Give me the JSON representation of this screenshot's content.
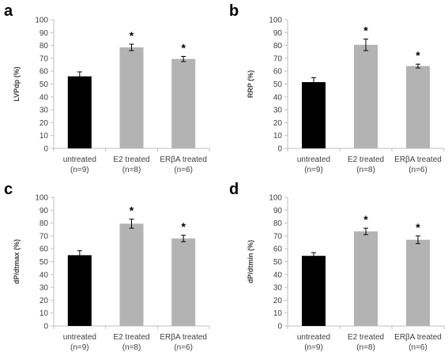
{
  "colors": {
    "untreated": "#000000",
    "treated": "#b3b3b3",
    "axis": "#bfbfbf",
    "text": "#404040"
  },
  "chart_data": [
    {
      "panel": "a",
      "type": "bar",
      "ylabel": "LVPdp (%)",
      "ylim": [
        0,
        100
      ],
      "yticks": [
        0,
        10,
        20,
        30,
        40,
        50,
        60,
        70,
        80,
        90,
        100
      ],
      "categories": [
        {
          "name": "untreated",
          "n": "(n=9)"
        },
        {
          "name": "E2 treated",
          "n": "(n=8)"
        },
        {
          "name": "ERβA treated",
          "n": "(n=6)"
        }
      ],
      "values": [
        56,
        78.5,
        69.5
      ],
      "errors": [
        3.5,
        2.5,
        2
      ],
      "significance": [
        "",
        "*",
        "*"
      ],
      "grid": false
    },
    {
      "panel": "b",
      "type": "bar",
      "ylabel": "RRP (%)",
      "ylim": [
        0,
        100
      ],
      "yticks": [
        0,
        10,
        20,
        30,
        40,
        50,
        60,
        70,
        80,
        90,
        100
      ],
      "categories": [
        {
          "name": "untreated",
          "n": "(n=9)"
        },
        {
          "name": "E2 treated",
          "n": "(n=8)"
        },
        {
          "name": "ERβA treated",
          "n": "(n=6)"
        }
      ],
      "values": [
        51.5,
        80.5,
        64
      ],
      "errors": [
        3.5,
        4.5,
        1.5
      ],
      "significance": [
        "",
        "*",
        "*"
      ],
      "grid": false
    },
    {
      "panel": "c",
      "type": "bar",
      "ylabel": "dP/dtmax (%)",
      "ylim": [
        0,
        100
      ],
      "yticks": [
        0,
        10,
        20,
        30,
        40,
        50,
        60,
        70,
        80,
        90,
        100
      ],
      "categories": [
        {
          "name": "untreated",
          "n": "(n=9)"
        },
        {
          "name": "E2 treated",
          "n": "(n=8)"
        },
        {
          "name": "ERβA treated",
          "n": "(n=6)"
        }
      ],
      "values": [
        55,
        79.5,
        68
      ],
      "errors": [
        3.5,
        3.5,
        2.5
      ],
      "significance": [
        "",
        "*",
        "*"
      ],
      "grid": false
    },
    {
      "panel": "d",
      "type": "bar",
      "ylabel": "dP/dtmin (%)",
      "ylim": [
        0,
        100
      ],
      "yticks": [
        0,
        10,
        20,
        30,
        40,
        50,
        60,
        70,
        80,
        90,
        100
      ],
      "categories": [
        {
          "name": "untreated",
          "n": "(n=9)"
        },
        {
          "name": "E2 treated",
          "n": "(n=8)"
        },
        {
          "name": "ERβA treated",
          "n": "(n=6)"
        }
      ],
      "values": [
        54.5,
        73.5,
        67
      ],
      "errors": [
        2.5,
        2.5,
        3
      ],
      "significance": [
        "",
        "*",
        "*"
      ],
      "grid": false
    }
  ]
}
